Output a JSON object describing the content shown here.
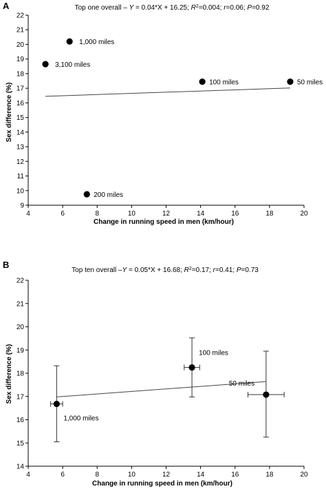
{
  "chart_data": [
    {
      "type": "scatter",
      "panel": "A",
      "title_prefix": "Top one overall – ",
      "title_eq_y": "Y",
      "title_eq": " = 0.04*X + 16.25; ",
      "title_r2_label": "R",
      "title_r2_sup": "2",
      "title_r2_val": "=0.004; ",
      "title_r_label": "r",
      "title_r_val": "=0.06; ",
      "title_p_label": "P",
      "title_p_val": "=0.92",
      "xlabel": "Change in running speed in men (km/hour)",
      "ylabel": "Sex difference (%)",
      "xlim": [
        4,
        20
      ],
      "ylim": [
        9,
        22
      ],
      "xticks": [
        4,
        6,
        8,
        10,
        12,
        14,
        16,
        18,
        20
      ],
      "yticks": [
        9,
        10,
        11,
        12,
        13,
        14,
        15,
        16,
        17,
        18,
        19,
        20,
        21,
        22
      ],
      "points": [
        {
          "label": "1,000 miles",
          "x": 6.4,
          "y": 20.2
        },
        {
          "label": "3,100 miles",
          "x": 5.0,
          "y": 18.65
        },
        {
          "label": "100 miles",
          "x": 14.1,
          "y": 17.45
        },
        {
          "label": "50 miles",
          "x": 19.2,
          "y": 17.45
        },
        {
          "label": "200 miles",
          "x": 7.4,
          "y": 9.75
        }
      ],
      "fit": {
        "slope": 0.04,
        "intercept": 16.25,
        "x_range": [
          5.0,
          19.2
        ]
      }
    },
    {
      "type": "scatter",
      "panel": "B",
      "title_prefix": "Top ten overall –",
      "title_eq_y": "Y",
      "title_eq": " = 0.05*X + 16.68; ",
      "title_r2_label": "R",
      "title_r2_sup": "2",
      "title_r2_val": "=0.17; ",
      "title_r_label": "r",
      "title_r_val": "=0.41; ",
      "title_p_label": "P",
      "title_p_val": "=0.73",
      "xlabel": "Change in running speed in men (km/hour)",
      "ylabel": "Sex difference (%)",
      "xlim": [
        4,
        20
      ],
      "ylim": [
        14,
        22
      ],
      "xticks": [
        4,
        6,
        8,
        10,
        12,
        14,
        16,
        18,
        20
      ],
      "yticks": [
        14,
        15,
        16,
        17,
        18,
        19,
        20,
        21,
        22
      ],
      "points": [
        {
          "label": "1,000 miles",
          "x": 5.65,
          "y": 16.68,
          "xerr": 0.35,
          "y_low": 15.05,
          "y_high": 18.32
        },
        {
          "label": "100 miles",
          "x": 13.5,
          "y": 18.25,
          "xerr": 0.45,
          "y_low": 16.98,
          "y_high": 19.52
        },
        {
          "label": "50 miles",
          "x": 17.8,
          "y": 17.08,
          "xerr": 1.05,
          "y_low": 15.25,
          "y_high": 18.95
        }
      ],
      "fit": {
        "x_range": [
          5.65,
          17.8
        ],
        "y_range": [
          16.98,
          17.64
        ]
      }
    }
  ]
}
